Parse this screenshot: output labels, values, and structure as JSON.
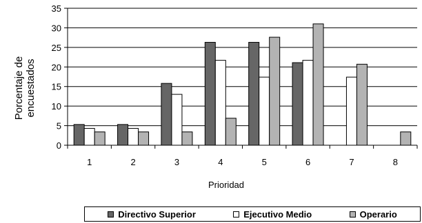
{
  "chart_data": {
    "type": "bar",
    "title": "",
    "xlabel": "Prioridad",
    "ylabel_lines": [
      "Porcentaje de",
      "encuestados"
    ],
    "ylim": [
      0,
      35
    ],
    "yticks": [
      0,
      5,
      10,
      15,
      20,
      25,
      30,
      35
    ],
    "grid": true,
    "legend_position": "bottom",
    "categories": [
      "1",
      "2",
      "3",
      "4",
      "5",
      "6",
      "7",
      "8"
    ],
    "series": [
      {
        "name": "Directivo Superior",
        "color": "#666666",
        "values": [
          5.3,
          5.3,
          15.8,
          26.3,
          26.3,
          21.1,
          0,
          0
        ]
      },
      {
        "name": "Ejecutivo Medio",
        "color": "#ffffff",
        "values": [
          4.3,
          4.3,
          13.0,
          21.7,
          17.4,
          21.7,
          17.4,
          0
        ]
      },
      {
        "name": "Operario",
        "color": "#b3b3b3",
        "values": [
          3.4,
          3.4,
          3.4,
          6.9,
          27.6,
          31.0,
          20.7,
          3.4
        ]
      }
    ]
  }
}
